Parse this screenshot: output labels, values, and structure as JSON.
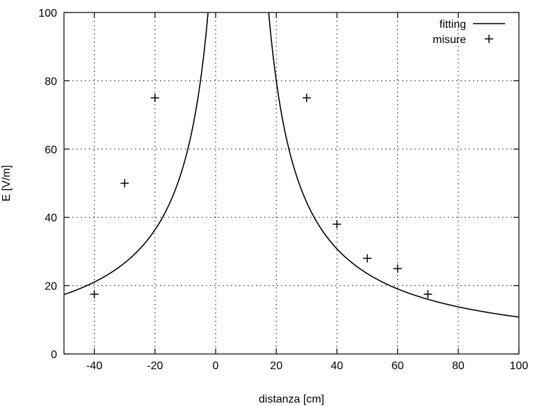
{
  "chart_data": {
    "type": "scatter",
    "title": "",
    "xlabel": "distanza [cm]",
    "ylabel": "E [V/m]",
    "xlim": [
      -50,
      100
    ],
    "ylim": [
      0,
      100
    ],
    "xticks": [
      -40,
      -20,
      0,
      20,
      40,
      60,
      80,
      100
    ],
    "yticks": [
      0,
      20,
      40,
      60,
      80,
      100
    ],
    "grid": true,
    "legend_position": "top-right",
    "series": [
      {
        "name": "fitting",
        "kind": "line",
        "model": {
          "form": "a / |x - x0|",
          "a": 1000,
          "x0": 7.5
        }
      },
      {
        "name": "misure",
        "kind": "markers",
        "marker": "plus",
        "x": [
          -40,
          -30,
          -20,
          30,
          40,
          50,
          60,
          70
        ],
        "y": [
          17.5,
          50,
          75,
          75,
          38,
          28,
          25,
          17.5
        ]
      }
    ]
  }
}
